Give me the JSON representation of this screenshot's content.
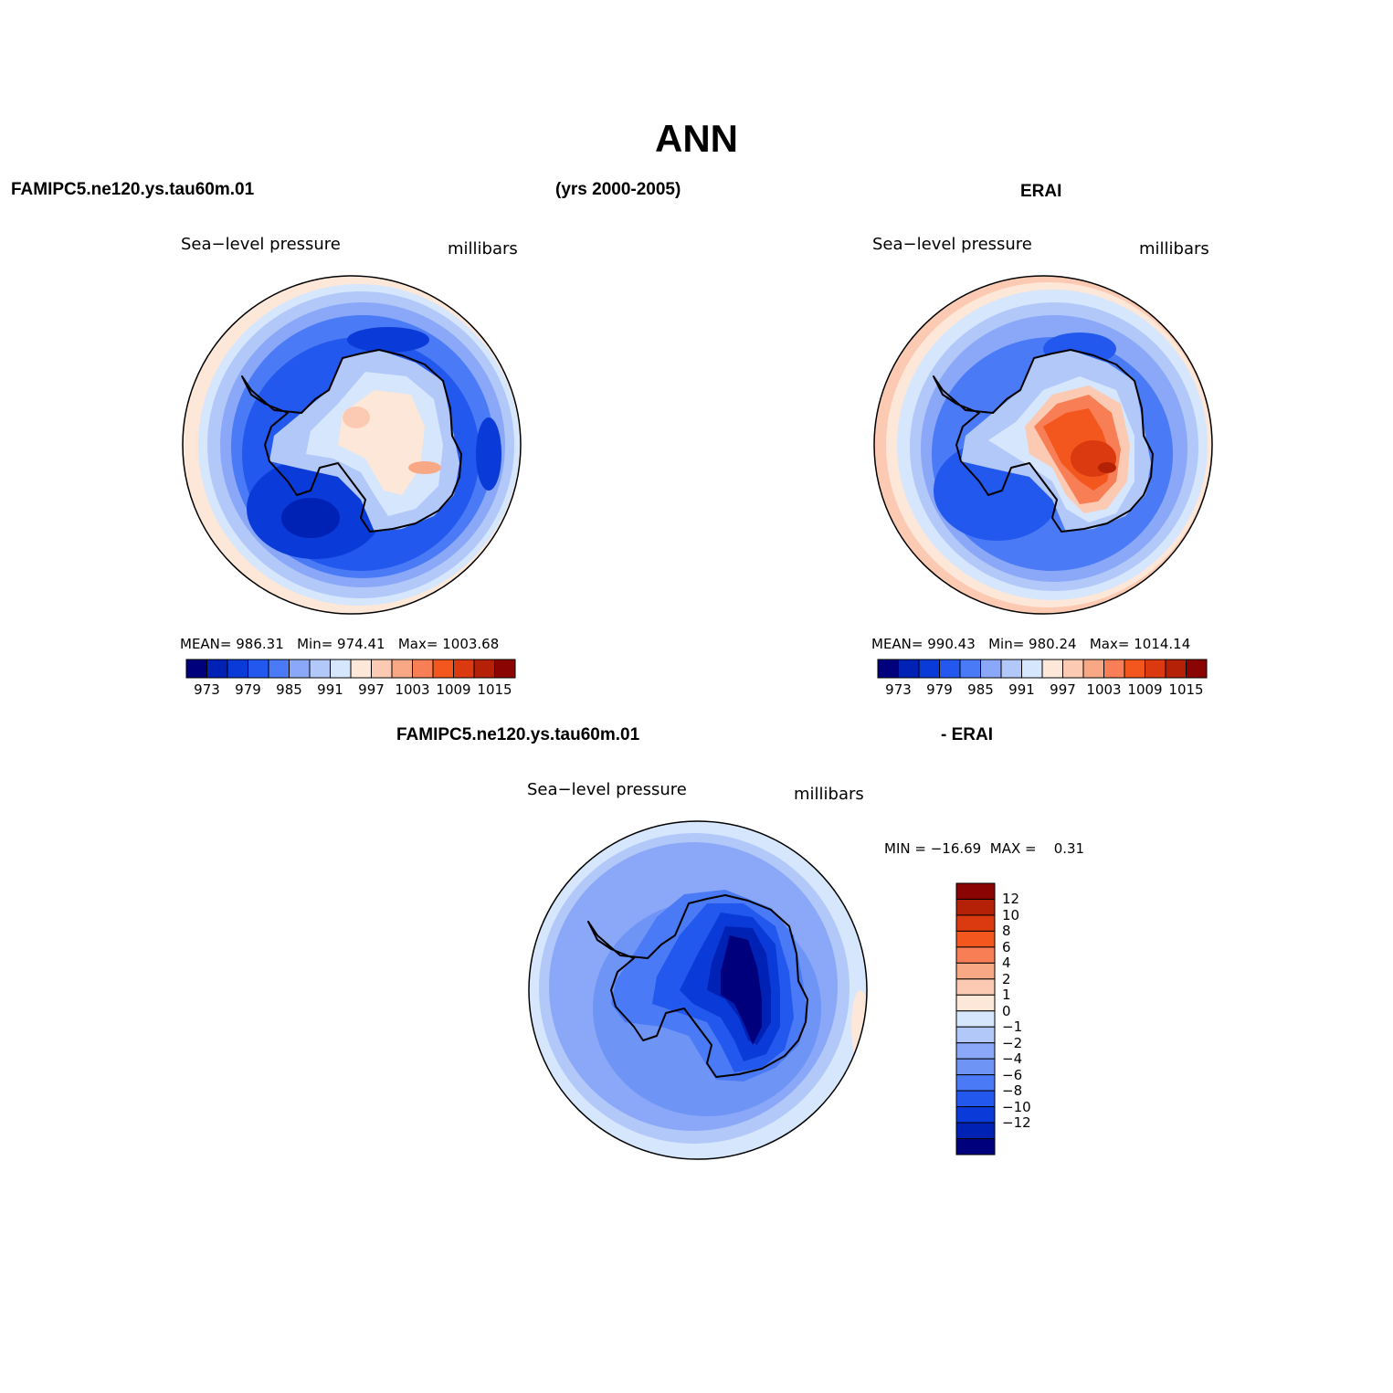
{
  "figure": {
    "title": "ANN",
    "case_label": "FAMIPC5.ne120.ys.tau60m.01",
    "years_label": "(yrs 2000-2005)",
    "obs_label": "ERAI",
    "diff_case_label": "FAMIPC5.ne120.ys.tau60m.01",
    "diff_obs_label": "- ERAI"
  },
  "colors": {
    "seq_palette": [
      "#00007d",
      "#0022b4",
      "#0a3ad8",
      "#2258ee",
      "#4a7af5",
      "#8aa8f7",
      "#b2c8f9",
      "#d6e6fc",
      "#fde7d8",
      "#fccab2",
      "#f9a886",
      "#f77e55",
      "#f4571e",
      "#db3a10",
      "#b52106",
      "#8b0404"
    ],
    "diff_palette": [
      "#00007d",
      "#0022b4",
      "#0a3ad8",
      "#2258ee",
      "#4a7af5",
      "#6e94f6",
      "#8aa8f7",
      "#b2c8f9",
      "#d6e6fc",
      "#fde7d8",
      "#fccab2",
      "#f9a886",
      "#f77e55",
      "#f4571e",
      "#db3a10",
      "#b52106",
      "#8b0404"
    ],
    "coast": "#000000"
  },
  "panels": [
    {
      "id": "model",
      "variable": "Sea−level pressure",
      "units": "millibars",
      "mean_label": "MEAN=",
      "mean_value": "986.31",
      "min_label": "Min=",
      "min_value": "974.41",
      "max_label": "Max=",
      "max_value": "1003.68",
      "colorbar_ticks": [
        "973",
        "979",
        "985",
        "991",
        "997",
        "1003",
        "1009",
        "1015"
      ]
    },
    {
      "id": "obs",
      "variable": "Sea−level pressure",
      "units": "millibars",
      "mean_label": "MEAN=",
      "mean_value": "990.43",
      "min_label": "Min=",
      "min_value": "980.24",
      "max_label": "Max=",
      "max_value": "1014.14",
      "colorbar_ticks": [
        "973",
        "979",
        "985",
        "991",
        "997",
        "1003",
        "1009",
        "1015"
      ]
    },
    {
      "id": "diff",
      "variable": "Sea−level pressure",
      "units": "millibars",
      "min_label": "MIN =",
      "min_value": "−16.69",
      "max_label": "MAX =",
      "max_value": "0.31",
      "colorbar_ticks": [
        "12",
        "10",
        "8",
        "6",
        "4",
        "2",
        "1",
        "0",
        "−1",
        "−2",
        "−4",
        "−6",
        "−8",
        "−10",
        "−12"
      ]
    }
  ],
  "chart_data": {
    "type": "heatmap",
    "title": "ANN",
    "projection": "south polar stereographic",
    "maps": [
      {
        "name": "FAMIPC5.ne120.ys.tau60m.01",
        "variable": "Sea-level pressure",
        "units": "millibars",
        "mean": 986.31,
        "min": 974.41,
        "max": 1003.68,
        "levels": [
          973,
          976,
          979,
          982,
          985,
          988,
          991,
          994,
          997,
          1000,
          1003,
          1006,
          1009,
          1012,
          1015
        ]
      },
      {
        "name": "ERAI",
        "variable": "Sea-level pressure",
        "units": "millibars",
        "mean": 990.43,
        "min": 980.24,
        "max": 1014.14,
        "levels": [
          973,
          976,
          979,
          982,
          985,
          988,
          991,
          994,
          997,
          1000,
          1003,
          1006,
          1009,
          1012,
          1015
        ]
      },
      {
        "name": "FAMIPC5.ne120.ys.tau60m.01 - ERAI",
        "variable": "Sea-level pressure",
        "units": "millibars",
        "min": -16.69,
        "max": 0.31,
        "levels": [
          -12,
          -10,
          -8,
          -6,
          -4,
          -2,
          -1,
          0,
          1,
          2,
          4,
          6,
          8,
          10,
          12
        ]
      }
    ]
  }
}
